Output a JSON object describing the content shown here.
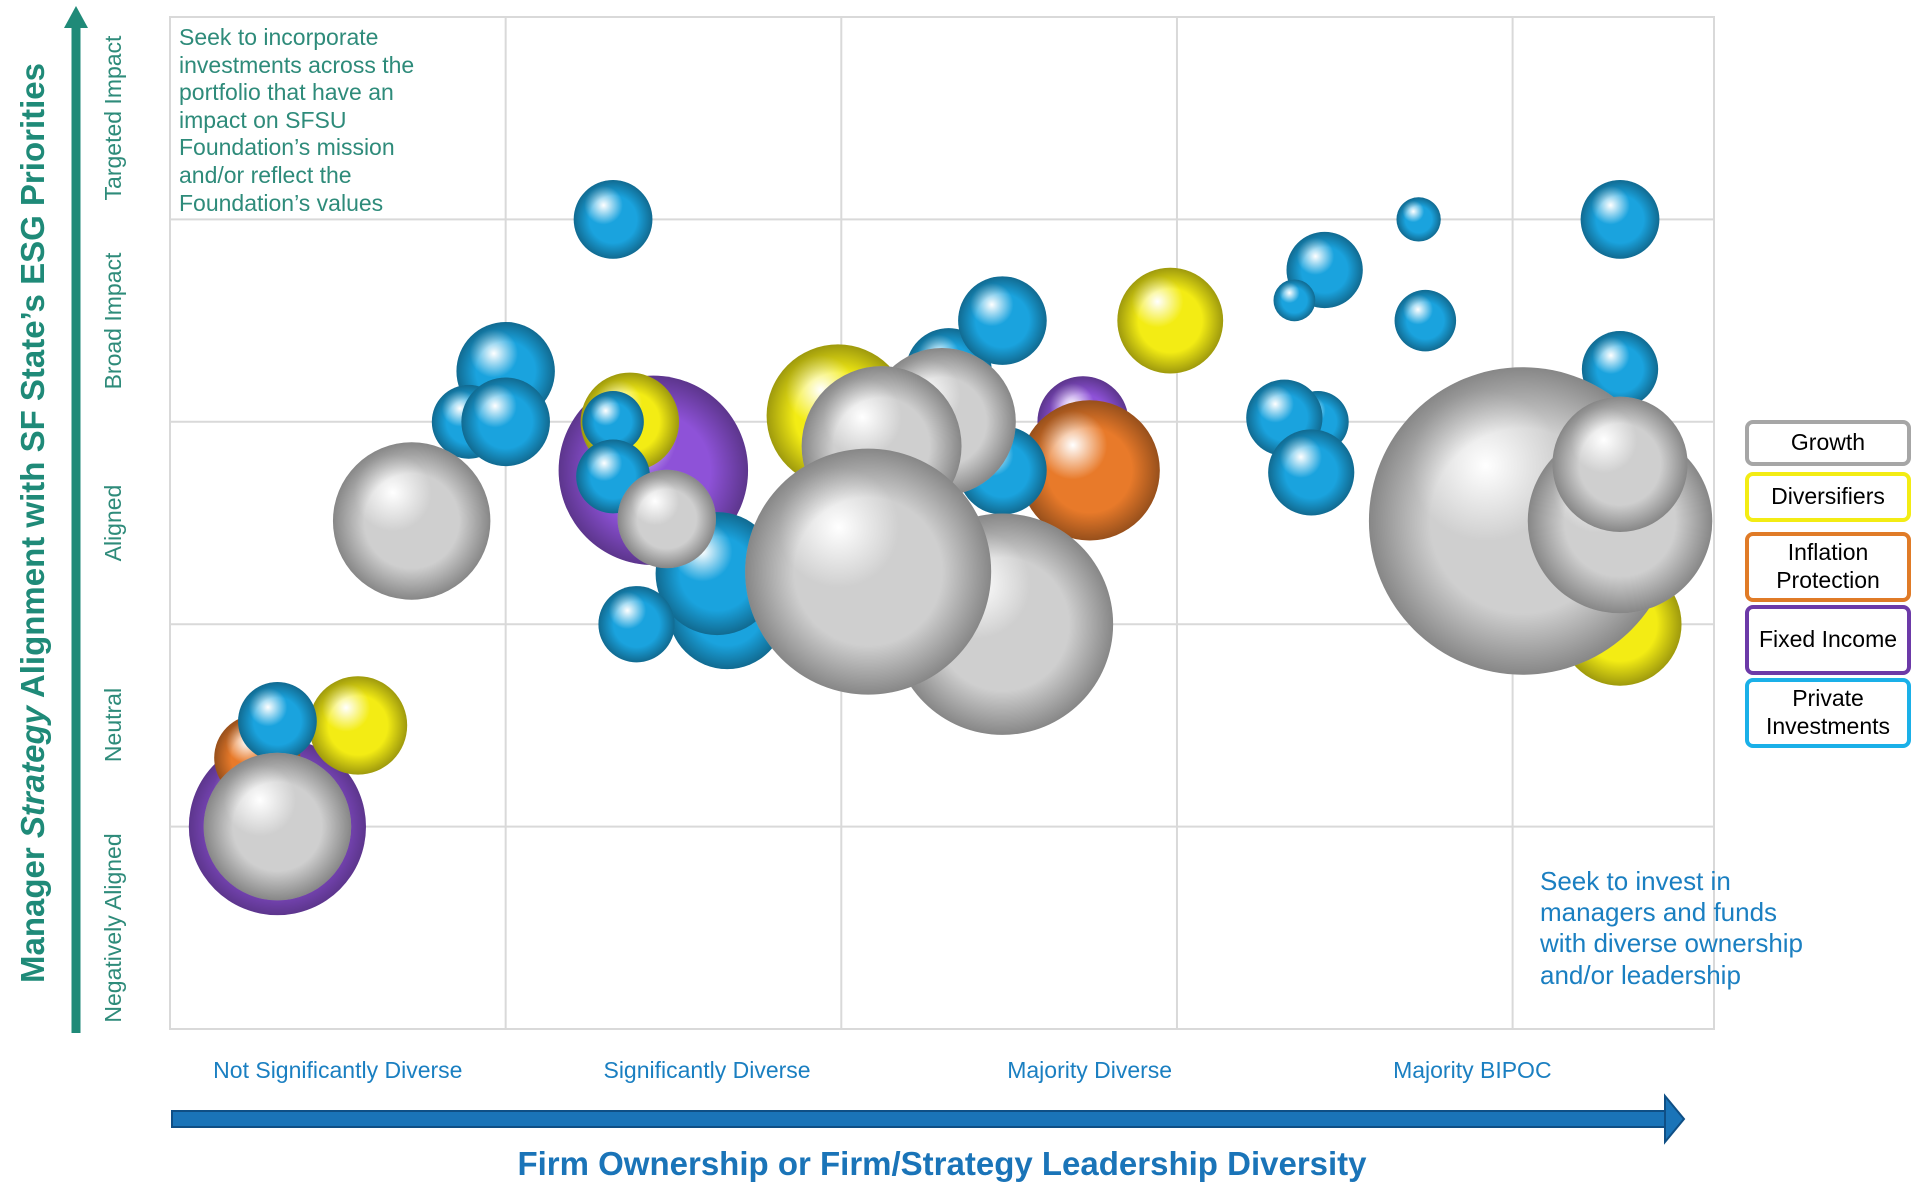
{
  "chart_data": {
    "type": "bubble",
    "ylabel": [
      "Manager",
      "Strategy",
      "Alignment with SF State’s ESG Priorities"
    ],
    "xlabel": "Firm Ownership or Firm/Strategy Leadership Diversity",
    "xlim": [
      0,
      4.6
    ],
    "ylim": [
      0,
      5
    ],
    "xticks": [
      {
        "value": 0.5,
        "label": "Not Significantly Diverse"
      },
      {
        "value": 1.6,
        "label": "Significantly Diverse"
      },
      {
        "value": 2.74,
        "label": "Majority Diverse"
      },
      {
        "value": 3.88,
        "label": "Majority BIPOC"
      }
    ],
    "yticks": [
      {
        "value": 0.5,
        "label": "Negatively Aligned"
      },
      {
        "value": 1.5,
        "label": "Neutral"
      },
      {
        "value": 2.5,
        "label": "Aligned"
      },
      {
        "value": 3.5,
        "label": "Broad Impact"
      },
      {
        "value": 4.5,
        "label": "Targeted Impact"
      }
    ],
    "grid_x": [
      1,
      2,
      3,
      4
    ],
    "grid_y": [
      1,
      2,
      3,
      4
    ],
    "annotations": [
      "Seek to incorporate investments across the portfolio that have an impact on SFSU Foundation’s mission and/or reflect the Foundation’s values",
      "Seek to invest in managers and funds with diverse ownership and/or leadership"
    ],
    "series": [
      {
        "name": "Growth",
        "color": "#cfcfcf",
        "border": "#a6a6a6",
        "x": [
          0.72,
          0.32,
          1.48,
          2.3,
          2.12,
          2.48,
          2.08,
          4.03,
          4.32,
          4.32
        ],
        "values": [
          2.51,
          1.0,
          2.52,
          3.0,
          2.88,
          2.0,
          2.26,
          2.51,
          2.51,
          2.79
        ],
        "sizes": [
          64,
          60,
          40,
          60,
          65,
          90,
          100,
          125,
          75,
          55
        ]
      },
      {
        "name": "Diversifiers",
        "color": "#f3ec14",
        "border": "#f3ec14",
        "x": [
          0.56,
          1.37,
          1.99,
          2.98,
          4.32
        ],
        "values": [
          1.5,
          3.0,
          3.03,
          3.5,
          2.0
        ],
        "sizes": [
          40,
          40,
          58,
          43,
          50
        ]
      },
      {
        "name": "Inflation Protection",
        "color": "#e87a2a",
        "border": "#e07b27",
        "x": [
          0.26,
          2.74
        ],
        "values": [
          1.34,
          2.76
        ],
        "sizes": [
          35,
          57
        ]
      },
      {
        "name": "Fixed Income",
        "color": "#8e52d8",
        "border": "#6c3aa8",
        "x": [
          0.32,
          1.44,
          2.72
        ],
        "values": [
          1.0,
          2.76,
          3.0
        ],
        "sizes": [
          72,
          77,
          37
        ]
      },
      {
        "name": "Private Investments",
        "color": "#1aa3de",
        "border": "#1ab0e8",
        "x": [
          1.32,
          1.0,
          0.89,
          1.0,
          1.32,
          1.32,
          1.66,
          1.63,
          1.39,
          0.32,
          2.32,
          2.48,
          2.48,
          3.44,
          3.35,
          3.72,
          3.74,
          4.32,
          4.32,
          3.42,
          3.32,
          3.4
        ],
        "values": [
          4.0,
          3.25,
          3.0,
          3.0,
          3.0,
          2.73,
          2.07,
          2.25,
          2.0,
          1.52,
          3.25,
          3.5,
          2.76,
          3.75,
          3.6,
          4.0,
          3.5,
          4.0,
          3.26,
          3.0,
          3.02,
          2.75
        ],
        "sizes": [
          32,
          40,
          30,
          36,
          25,
          30,
          48,
          50,
          31,
          32,
          35,
          36,
          36,
          31,
          17,
          18,
          25,
          32,
          31,
          25,
          31,
          35
        ]
      }
    ]
  }
}
